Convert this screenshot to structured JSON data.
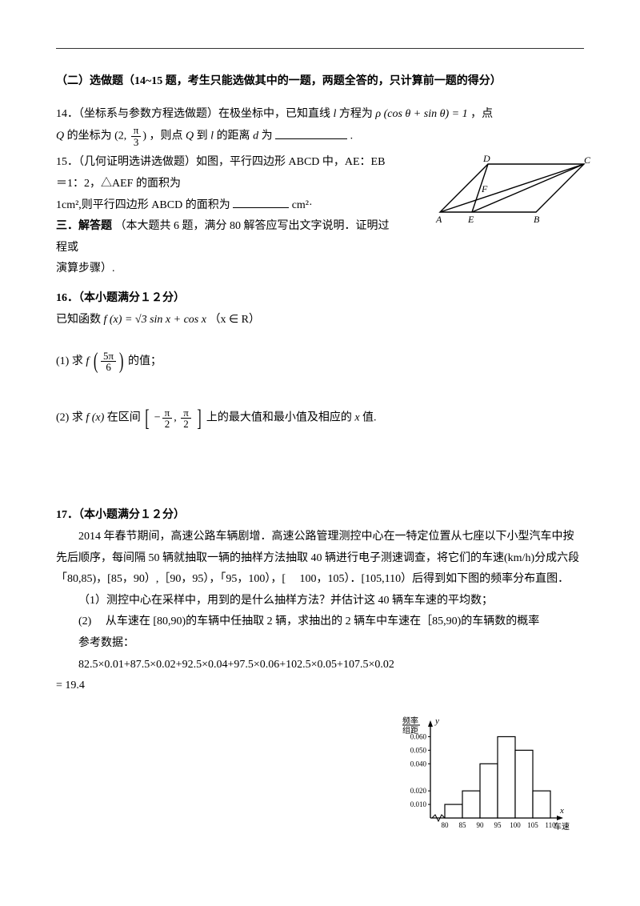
{
  "header": {
    "section_title": "（二）选做题（14~15 题，考生只能选做其中的一题，两题全答的，只计算前一题的得分）"
  },
  "q14": {
    "prefix": "14．（坐标系与参数方程选做题）在极坐标中，已知直线",
    "l": "l",
    "mid1": " 方程为 ",
    "eq": "ρ (cos θ + sin θ) = 1",
    "mid2": " ，点",
    "Q": "Q",
    "line2_1": " 的坐标为 ",
    "coord_open": "(2, ",
    "frac_num": "π",
    "frac_den": "3",
    "coord_close": ")",
    "line2_2": "，则点",
    "line2_3": " 到 ",
    "line2_4": " 的距离 ",
    "d": "d",
    "line2_5": " 为",
    "period": "."
  },
  "q15": {
    "text1": "15．（几何证明选讲选做题）如图，平行四边形 ABCD 中，AE：EB＝1：2，△AEF 的面积为",
    "text2": "1cm²,则平行四边形 ABCD 的面积为",
    "unit": "cm²·",
    "fig": {
      "A": "A",
      "B": "B",
      "C": "C",
      "D": "D",
      "E": "E",
      "F": "F"
    }
  },
  "sectionThree": {
    "title": "三．解答题",
    "note": "（本大题共 6 题，满分 80 解答应写出文字说明．证明过程或",
    "note2": "演算步骤）."
  },
  "q16": {
    "title": "16．（本小题满分１２分）",
    "line1_a": "已知函数 ",
    "fx": "f (x)",
    "line1_b": "= √3 sin x + cos x",
    "domain": "（x ∈ R）",
    "part1_a": "(1) 求 ",
    "part1_f": "f",
    "frac_num": "5π",
    "frac_den": "6",
    "part1_b": "的值；",
    "part2_a": "(2)  求 ",
    "part2_b": "在区间",
    "int_a_num": "π",
    "int_a_den": "2",
    "int_b_num": "π",
    "int_b_den": "2",
    "part2_c": "上的最大值和最小值及相应的 ",
    "xvar": "x",
    "part2_d": " 值."
  },
  "q17": {
    "title": "17．（本小题满分１２分）",
    "p1": "2014 年春节期间，高速公路车辆剧增．高速公路管理测控中心在一特定位置从七座以下小型汽车中按先后顺序，每间隔 50 辆就抽取一辆的抽样方法抽取 40 辆进行电子测速调查，将它们的车速(km/h)分成六段「80,85)，[85，90）,［90，95），「95，100），[　  100，105）．[105,110）后得到如下图的频率分布直图．",
    "p2": "（1）测控中心在采样中，用到的是什么抽样方法？并估计这 40 辆车车速的平均数；",
    "p3": "(2)　 从车速在 [80,90)的车辆中任抽取 2 辆，求抽出的 2 辆车中车速在［85,90)的车辆数的概率",
    "p4": "参考数据：",
    "calc": "82.5×0.01+87.5×0.02+92.5×0.04+97.5×0.06+102.5×0.05+107.5×0.02",
    "result": "= 19.4",
    "chart": {
      "ylabel1": "频率",
      "ylabel2": "组距",
      "yarrow": "y",
      "xarrow": "x",
      "xlabel": "车速",
      "ticks_y": [
        "0.010",
        "0.020",
        "0.040",
        "0.050",
        "0.060"
      ],
      "ticks_x": [
        "80",
        "85",
        "90",
        "95",
        "100",
        "105",
        "110"
      ],
      "bars": [
        0.01,
        0.02,
        0.04,
        0.06,
        0.05,
        0.02
      ],
      "bar_color": "#ffffff",
      "line_color": "#000000",
      "ymax": 0.065
    }
  }
}
